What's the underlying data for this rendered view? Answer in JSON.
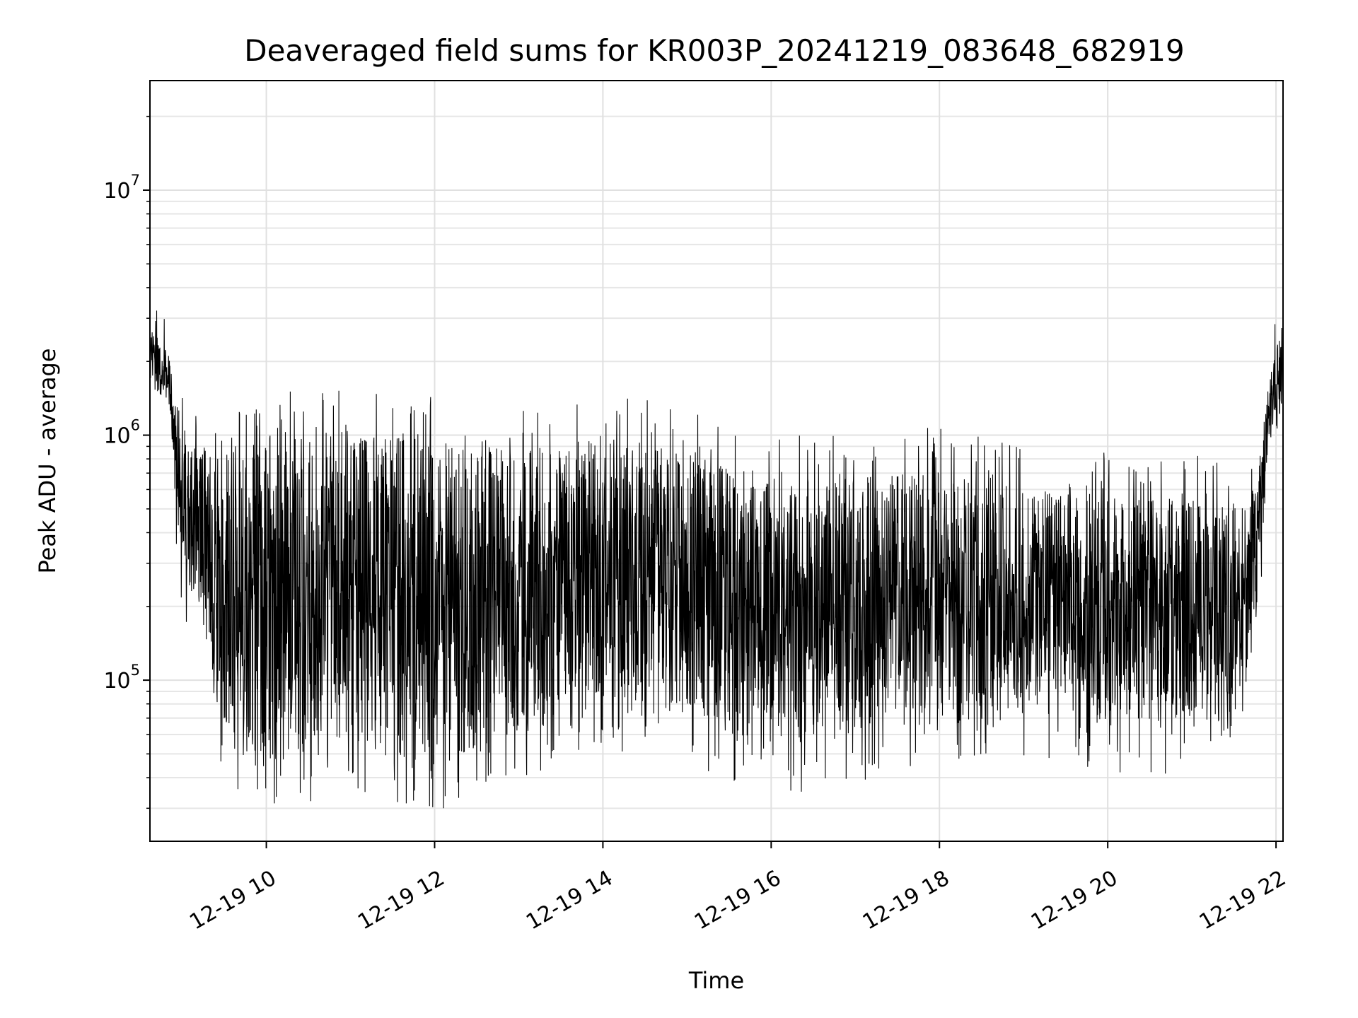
{
  "chart_data": {
    "type": "line",
    "title": "Deaveraged field sums for KR003P_20241219_083648_682919",
    "xlabel": "Time",
    "ylabel": "Peak ADU - average",
    "yscale": "log",
    "xlim": [
      "2024-12-19T08:37",
      "2024-12-19T22:05"
    ],
    "ylim": [
      22000,
      28000000
    ],
    "grid": true,
    "x_ticks": [
      {
        "label": "12-19 10",
        "t": "2024-12-19T10:00"
      },
      {
        "label": "12-19 12",
        "t": "2024-12-19T12:00"
      },
      {
        "label": "12-19 14",
        "t": "2024-12-19T14:00"
      },
      {
        "label": "12-19 16",
        "t": "2024-12-19T16:00"
      },
      {
        "label": "12-19 18",
        "t": "2024-12-19T18:00"
      },
      {
        "label": "12-19 20",
        "t": "2024-12-19T20:00"
      },
      {
        "label": "12-19 22",
        "t": "2024-12-19T22:00"
      }
    ],
    "y_ticks": [
      {
        "base": "10",
        "exp": "5",
        "value": 100000
      },
      {
        "base": "10",
        "exp": "6",
        "value": 1000000
      },
      {
        "base": "10",
        "exp": "7",
        "value": 10000000
      }
    ],
    "series_envelope": {
      "x": [
        "2024-12-19T08:37",
        "2024-12-19T08:50",
        "2024-12-19T09:00",
        "2024-12-19T09:15",
        "2024-12-19T09:30",
        "2024-12-19T10:00",
        "2024-12-19T10:30",
        "2024-12-19T11:00",
        "2024-12-19T11:30",
        "2024-12-19T12:00",
        "2024-12-19T12:30",
        "2024-12-19T13:00",
        "2024-12-19T13:30",
        "2024-12-19T14:00",
        "2024-12-19T14:30",
        "2024-12-19T15:00",
        "2024-12-19T15:30",
        "2024-12-19T16:00",
        "2024-12-19T16:30",
        "2024-12-19T17:00",
        "2024-12-19T17:30",
        "2024-12-19T18:00",
        "2024-12-19T18:30",
        "2024-12-19T19:00",
        "2024-12-19T19:30",
        "2024-12-19T20:00",
        "2024-12-19T20:30",
        "2024-12-19T21:00",
        "2024-12-19T21:30",
        "2024-12-19T21:45",
        "2024-12-19T21:55",
        "2024-12-19T22:05"
      ],
      "upper": [
        2800000,
        2200000,
        1000000,
        900000,
        950000,
        1000000,
        1050000,
        1000000,
        1050000,
        1000000,
        1000000,
        950000,
        900000,
        1000000,
        950000,
        850000,
        750000,
        700000,
        650000,
        700000,
        700000,
        720000,
        680000,
        600000,
        580000,
        560000,
        560000,
        560000,
        560000,
        600000,
        1600000,
        3000000
      ],
      "lower": [
        1500000,
        1400000,
        300000,
        150000,
        50000,
        45000,
        50000,
        60000,
        45000,
        45000,
        50000,
        60000,
        70000,
        80000,
        80000,
        70000,
        60000,
        55000,
        55000,
        60000,
        70000,
        70000,
        60000,
        75000,
        70000,
        65000,
        65000,
        65000,
        70000,
        150000,
        1000000,
        1100000
      ],
      "peak_min": 30000
    }
  }
}
